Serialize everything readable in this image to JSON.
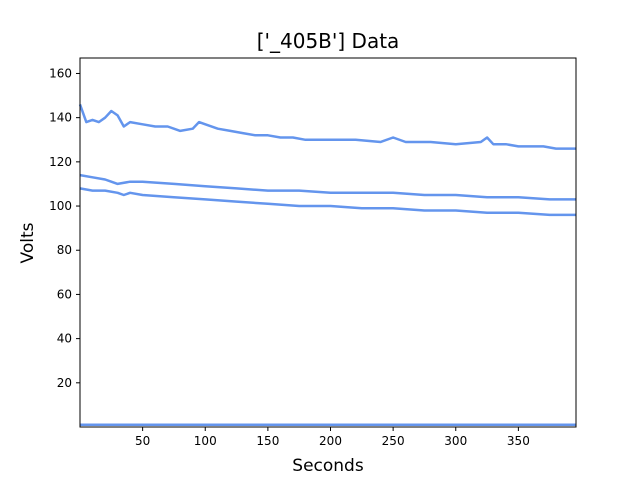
{
  "chart_data": {
    "type": "line",
    "title": "['_405B'] Data",
    "xlabel": "Seconds",
    "ylabel": "Volts",
    "xlim": [
      0,
      396
    ],
    "ylim": [
      0,
      167
    ],
    "xticks": [
      50,
      100,
      150,
      200,
      250,
      300,
      350
    ],
    "yticks": [
      20,
      40,
      60,
      80,
      100,
      120,
      140,
      160
    ],
    "grid": false,
    "legend": "none",
    "line_color": "#6495ED",
    "series": [
      {
        "x": [
          0,
          5,
          10,
          15,
          20,
          25,
          30,
          35,
          40,
          50,
          60,
          70,
          80,
          90,
          95,
          100,
          110,
          120,
          130,
          140,
          150,
          160,
          170,
          180,
          190,
          200,
          220,
          240,
          250,
          260,
          280,
          300,
          320,
          325,
          330,
          340,
          350,
          360,
          370,
          380,
          396
        ],
        "y": [
          146,
          138,
          139,
          138,
          140,
          143,
          141,
          136,
          138,
          137,
          136,
          136,
          134,
          135,
          138,
          137,
          135,
          134,
          133,
          132,
          132,
          131,
          131,
          130,
          130,
          130,
          130,
          129,
          131,
          129,
          129,
          128,
          129,
          131,
          128,
          128,
          127,
          127,
          127,
          126,
          126
        ]
      },
      {
        "x": [
          0,
          10,
          20,
          25,
          30,
          40,
          50,
          75,
          100,
          125,
          150,
          175,
          200,
          225,
          250,
          275,
          300,
          325,
          350,
          375,
          396
        ],
        "y": [
          114,
          113,
          112,
          111,
          110,
          111,
          111,
          110,
          109,
          108,
          107,
          107,
          106,
          106,
          106,
          105,
          105,
          104,
          104,
          103,
          103
        ]
      },
      {
        "x": [
          0,
          10,
          20,
          30,
          35,
          40,
          50,
          75,
          100,
          125,
          150,
          175,
          200,
          225,
          250,
          275,
          300,
          325,
          350,
          375,
          396
        ],
        "y": [
          108,
          107,
          107,
          106,
          105,
          106,
          105,
          104,
          103,
          102,
          101,
          100,
          100,
          99,
          99,
          98,
          98,
          97,
          97,
          96,
          96
        ]
      },
      {
        "x": [
          0,
          50,
          100,
          150,
          200,
          250,
          300,
          350,
          396
        ],
        "y": [
          1,
          1,
          1,
          1,
          1,
          1,
          1,
          1,
          1
        ]
      }
    ]
  }
}
